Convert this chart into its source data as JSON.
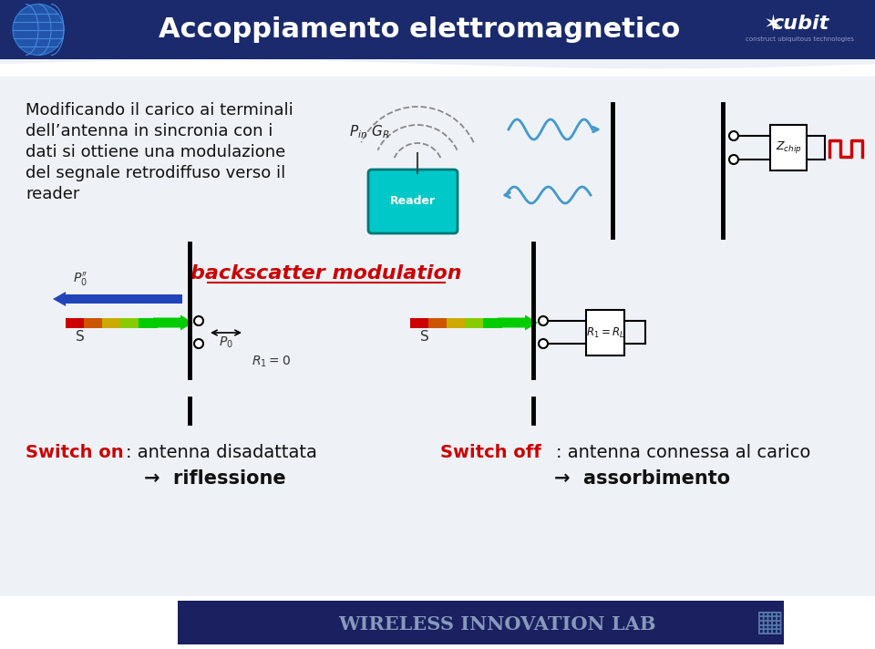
{
  "title": "Accoppiamento elettromagnetico",
  "header_color": "#1a2a6c",
  "footer_color": "#1a2060",
  "bg_color": "#eef2f7",
  "title_color": "#ffffff",
  "title_fontsize": 22,
  "body_lines": [
    "Modificando il carico ai terminali",
    "dell’antenna in sincronia con i",
    "dati si ottiene una modulazione",
    "del segnale retrodiffuso verso il",
    "reader"
  ],
  "body_fontsize": 13,
  "body_color": "#111111",
  "backscatter_text": "backscatter modulation",
  "backscatter_color": "#cc0000",
  "backscatter_fontsize": 16,
  "switch_on_label": "Switch on",
  "switch_on_rest": ": antenna disadattata",
  "switch_on_sub": "riflessione",
  "switch_off_label": "Switch off",
  "switch_off_rest": ": antenna connessa al carico",
  "switch_off_sub": "assorbimento",
  "switch_fontsize": 14,
  "switch_red": "#cc0000",
  "switch_dark": "#111111",
  "wireless_text": "Wireless Innovation Lab",
  "wireless_fontsize": 15,
  "grad_colors": [
    "#cc0000",
    "#cc5500",
    "#ccaa00",
    "#88cc00",
    "#00cc00"
  ]
}
